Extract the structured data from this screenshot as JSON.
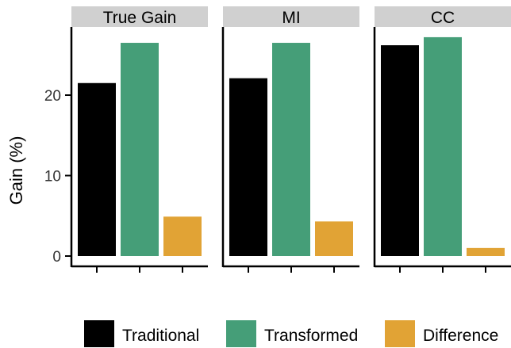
{
  "chart_data": {
    "type": "bar",
    "ylabel": "Gain (%)",
    "xlabel": "",
    "ylim": [
      0,
      30
    ],
    "yticks": [
      0,
      10,
      20
    ],
    "grid": false,
    "legend_position": "bottom",
    "categories": [
      "Traditional",
      "Transformed",
      "Difference"
    ],
    "series": [
      {
        "name": "Traditional",
        "color": "#000000"
      },
      {
        "name": "Transformed",
        "color": "#459e78"
      },
      {
        "name": "Difference",
        "color": "#e1a335"
      }
    ],
    "panels": [
      {
        "title": "True Gain",
        "values": [
          21.5,
          26.5,
          4.9
        ]
      },
      {
        "title": "MI",
        "values": [
          22.1,
          26.5,
          4.3
        ]
      },
      {
        "title": "CC",
        "values": [
          26.2,
          27.2,
          1.0
        ]
      }
    ]
  }
}
